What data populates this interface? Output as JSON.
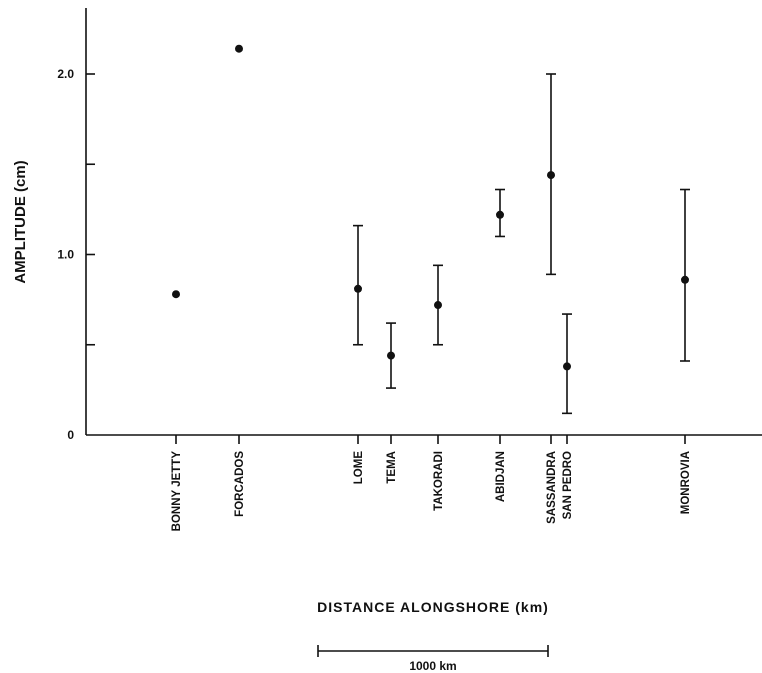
{
  "chart_data": {
    "type": "scatter",
    "xlabel": "DISTANCE ALONGSHORE (km)",
    "ylabel": "AMPLITUDE (cm)",
    "ylim": [
      0,
      2.4
    ],
    "y_ticks": [
      "0",
      "1.0",
      "2.0"
    ],
    "scale_bar": "1000 km",
    "grid": false,
    "stations": [
      {
        "name": "BONNY JETTY",
        "value": 0.78,
        "low": null,
        "high": null
      },
      {
        "name": "FORCADOS",
        "value": 2.14,
        "low": null,
        "high": null
      },
      {
        "name": "LOME",
        "value": 0.81,
        "low": 0.5,
        "high": 1.16
      },
      {
        "name": "TEMA",
        "value": 0.44,
        "low": 0.26,
        "high": 0.62
      },
      {
        "name": "TAKORADI",
        "value": 0.72,
        "low": 0.5,
        "high": 0.94
      },
      {
        "name": "ABIDJAN",
        "value": 1.22,
        "low": 1.1,
        "high": 1.36
      },
      {
        "name": "SASSANDRA",
        "value": 1.44,
        "low": 0.89,
        "high": 2.0
      },
      {
        "name": "SAN PEDRO",
        "value": 0.38,
        "low": 0.12,
        "high": 0.67
      },
      {
        "name": "MONROVIA",
        "value": 0.86,
        "low": 0.41,
        "high": 1.36
      }
    ]
  }
}
